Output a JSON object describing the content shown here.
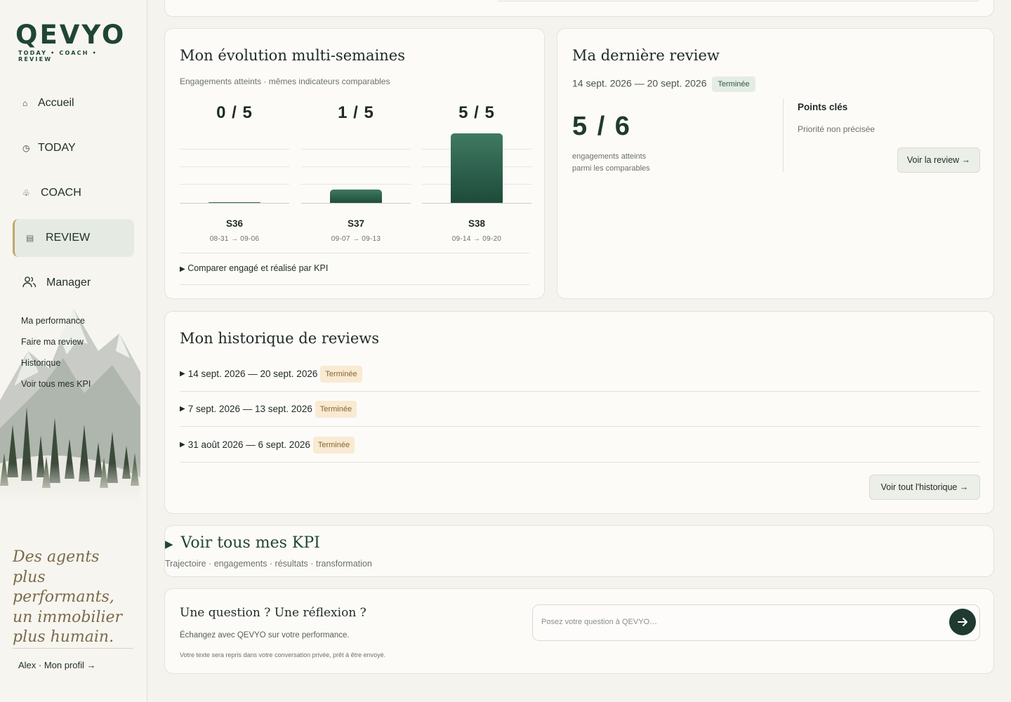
{
  "brand": {
    "name": "QEVYO",
    "tagline": "TODAY • COACH • REVIEW"
  },
  "nav": [
    {
      "label": "Accueil",
      "icon": "home-icon",
      "glyph": "⌂"
    },
    {
      "label": "TODAY",
      "icon": "clock-icon",
      "glyph": "◷"
    },
    {
      "label": "COACH",
      "icon": "coach-icon",
      "glyph": "♧"
    },
    {
      "label": "REVIEW",
      "icon": "document-icon",
      "glyph": "▤"
    },
    {
      "label": "Manager",
      "icon": "people-icon",
      "glyph": ""
    }
  ],
  "subnav": [
    "Ma performance",
    "Faire ma review",
    "Historique",
    "Voir tous mes KPI"
  ],
  "sidebar": {
    "tagline": [
      "Des agents",
      "plus",
      "performants,",
      "un immobilier",
      "plus humain."
    ],
    "profile": "Alex · Mon profil →"
  },
  "evolution": {
    "title": "Mon évolution multi-semaines",
    "subtitle": "Engagements atteints · mêmes indicateurs comparables",
    "compare_label": "Comparer engagé et réalisé par KPI",
    "weeks": [
      {
        "score": "0 / 5",
        "week": "S36",
        "dates": "08-31 → 09-06",
        "value": 0,
        "max": 5
      },
      {
        "score": "1 / 5",
        "week": "S37",
        "dates": "09-07 → 09-13",
        "value": 1,
        "max": 5
      },
      {
        "score": "5 / 5",
        "week": "S38",
        "dates": "09-14 → 09-20",
        "value": 5,
        "max": 5
      }
    ]
  },
  "chart_data": {
    "type": "bar",
    "categories": [
      "S36",
      "S37",
      "S38"
    ],
    "values": [
      0,
      1,
      5
    ],
    "ylim": [
      0,
      5
    ],
    "title": "",
    "xlabel": "",
    "ylabel": ""
  },
  "last_review": {
    "title": "Ma dernière review",
    "range": "14 sept. 2026 — 20 sept. 2026",
    "status": "Terminée",
    "score": "5 / 6",
    "score_label_1": "engagements atteints",
    "score_label_2": "parmi les comparables",
    "key_points_title": "Points clés",
    "key_points_text": "Priorité non précisée",
    "button": "Voir la review →"
  },
  "history": {
    "title": "Mon historique de reviews",
    "rows": [
      {
        "range": "14 sept. 2026 — 20 sept. 2026",
        "status": "Terminée"
      },
      {
        "range": "7 sept. 2026 — 13 sept. 2026",
        "status": "Terminée"
      },
      {
        "range": "31 août 2026 — 6 sept. 2026",
        "status": "Terminée"
      }
    ],
    "button": "Voir tout l'historique →"
  },
  "kpi": {
    "title": "Voir tous mes KPI",
    "subtitle": "Trajectoire · engagements · résultats · transformation"
  },
  "question": {
    "title": "Une question ? Une réflexion ?",
    "subtitle": "Échangez avec QEVYO sur votre performance.",
    "note": "Votre texte sera repris dans votre conversation privée, prêt à être envoyé.",
    "placeholder": "Posez votre question à QEVYO…"
  },
  "colors": {
    "accent": "#1f4536",
    "bar_top": "#3f7a62",
    "bar_bottom": "#1e4a3a",
    "status_green": "#e5ece4",
    "status_amber": "#f8ead3"
  }
}
